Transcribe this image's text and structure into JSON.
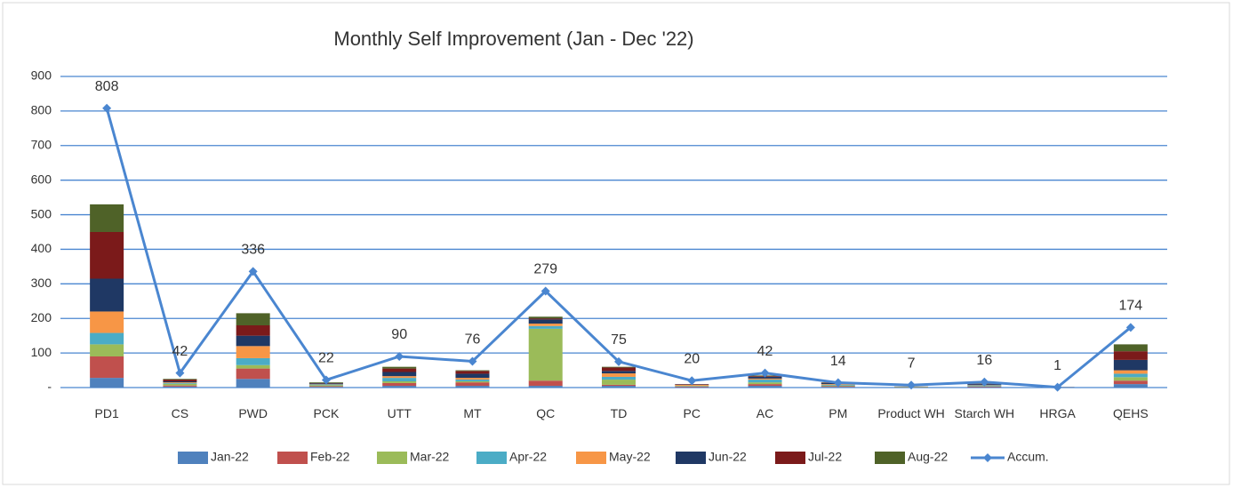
{
  "chart_data": {
    "type": "bar",
    "stacked": true,
    "title": "Monthly Self Improvement (Jan - Dec '22)",
    "categories": [
      "PD1",
      "CS",
      "PWD",
      "PCK",
      "UTT",
      "MT",
      "QC",
      "TD",
      "PC",
      "AC",
      "PM",
      "Product WH",
      "Starch WH",
      "HRGA",
      "QEHS"
    ],
    "series": [
      {
        "name": "Jan-22",
        "color": "#4f81bd",
        "values": [
          28,
          3,
          25,
          2,
          5,
          5,
          5,
          5,
          1,
          5,
          2,
          0,
          1,
          0,
          10
        ]
      },
      {
        "name": "Feb-22",
        "color": "#c0504d",
        "values": [
          62,
          3,
          30,
          2,
          8,
          10,
          15,
          3,
          2,
          5,
          2,
          0,
          2,
          0,
          10
        ]
      },
      {
        "name": "Mar-22",
        "color": "#9bbb59",
        "values": [
          35,
          5,
          10,
          3,
          5,
          3,
          150,
          15,
          1,
          5,
          2,
          1,
          1,
          0,
          10
        ]
      },
      {
        "name": "Apr-22",
        "color": "#4bacc6",
        "values": [
          33,
          2,
          20,
          2,
          10,
          5,
          8,
          8,
          1,
          8,
          2,
          0,
          2,
          0,
          10
        ]
      },
      {
        "name": "May-22",
        "color": "#f79646",
        "values": [
          62,
          2,
          35,
          1,
          5,
          5,
          7,
          10,
          3,
          3,
          2,
          1,
          1,
          0,
          10
        ]
      },
      {
        "name": "Jun-22",
        "color": "#1f3864",
        "values": [
          95,
          3,
          30,
          2,
          12,
          12,
          12,
          7,
          1,
          5,
          3,
          1,
          3,
          1,
          30
        ]
      },
      {
        "name": "Jul-22",
        "color": "#7b1a1a",
        "values": [
          135,
          5,
          30,
          1,
          10,
          8,
          3,
          10,
          1,
          2,
          1,
          0,
          1,
          0,
          25
        ]
      },
      {
        "name": "Aug-22",
        "color": "#4f6228",
        "values": [
          80,
          2,
          35,
          2,
          5,
          2,
          5,
          2,
          0,
          2,
          1,
          0,
          1,
          0,
          20
        ]
      },
      {
        "name": "Accum.",
        "type": "line",
        "color": "#4a86d0",
        "values": [
          808,
          42,
          336,
          22,
          90,
          76,
          279,
          75,
          20,
          42,
          14,
          7,
          16,
          1,
          174
        ]
      }
    ],
    "ylim": [
      0,
      900
    ],
    "yticks": [
      {
        "value": 0,
        "label": "-"
      },
      100,
      200,
      300,
      400,
      500,
      600,
      700,
      800,
      900
    ],
    "grid": true,
    "legend": "bottom"
  }
}
